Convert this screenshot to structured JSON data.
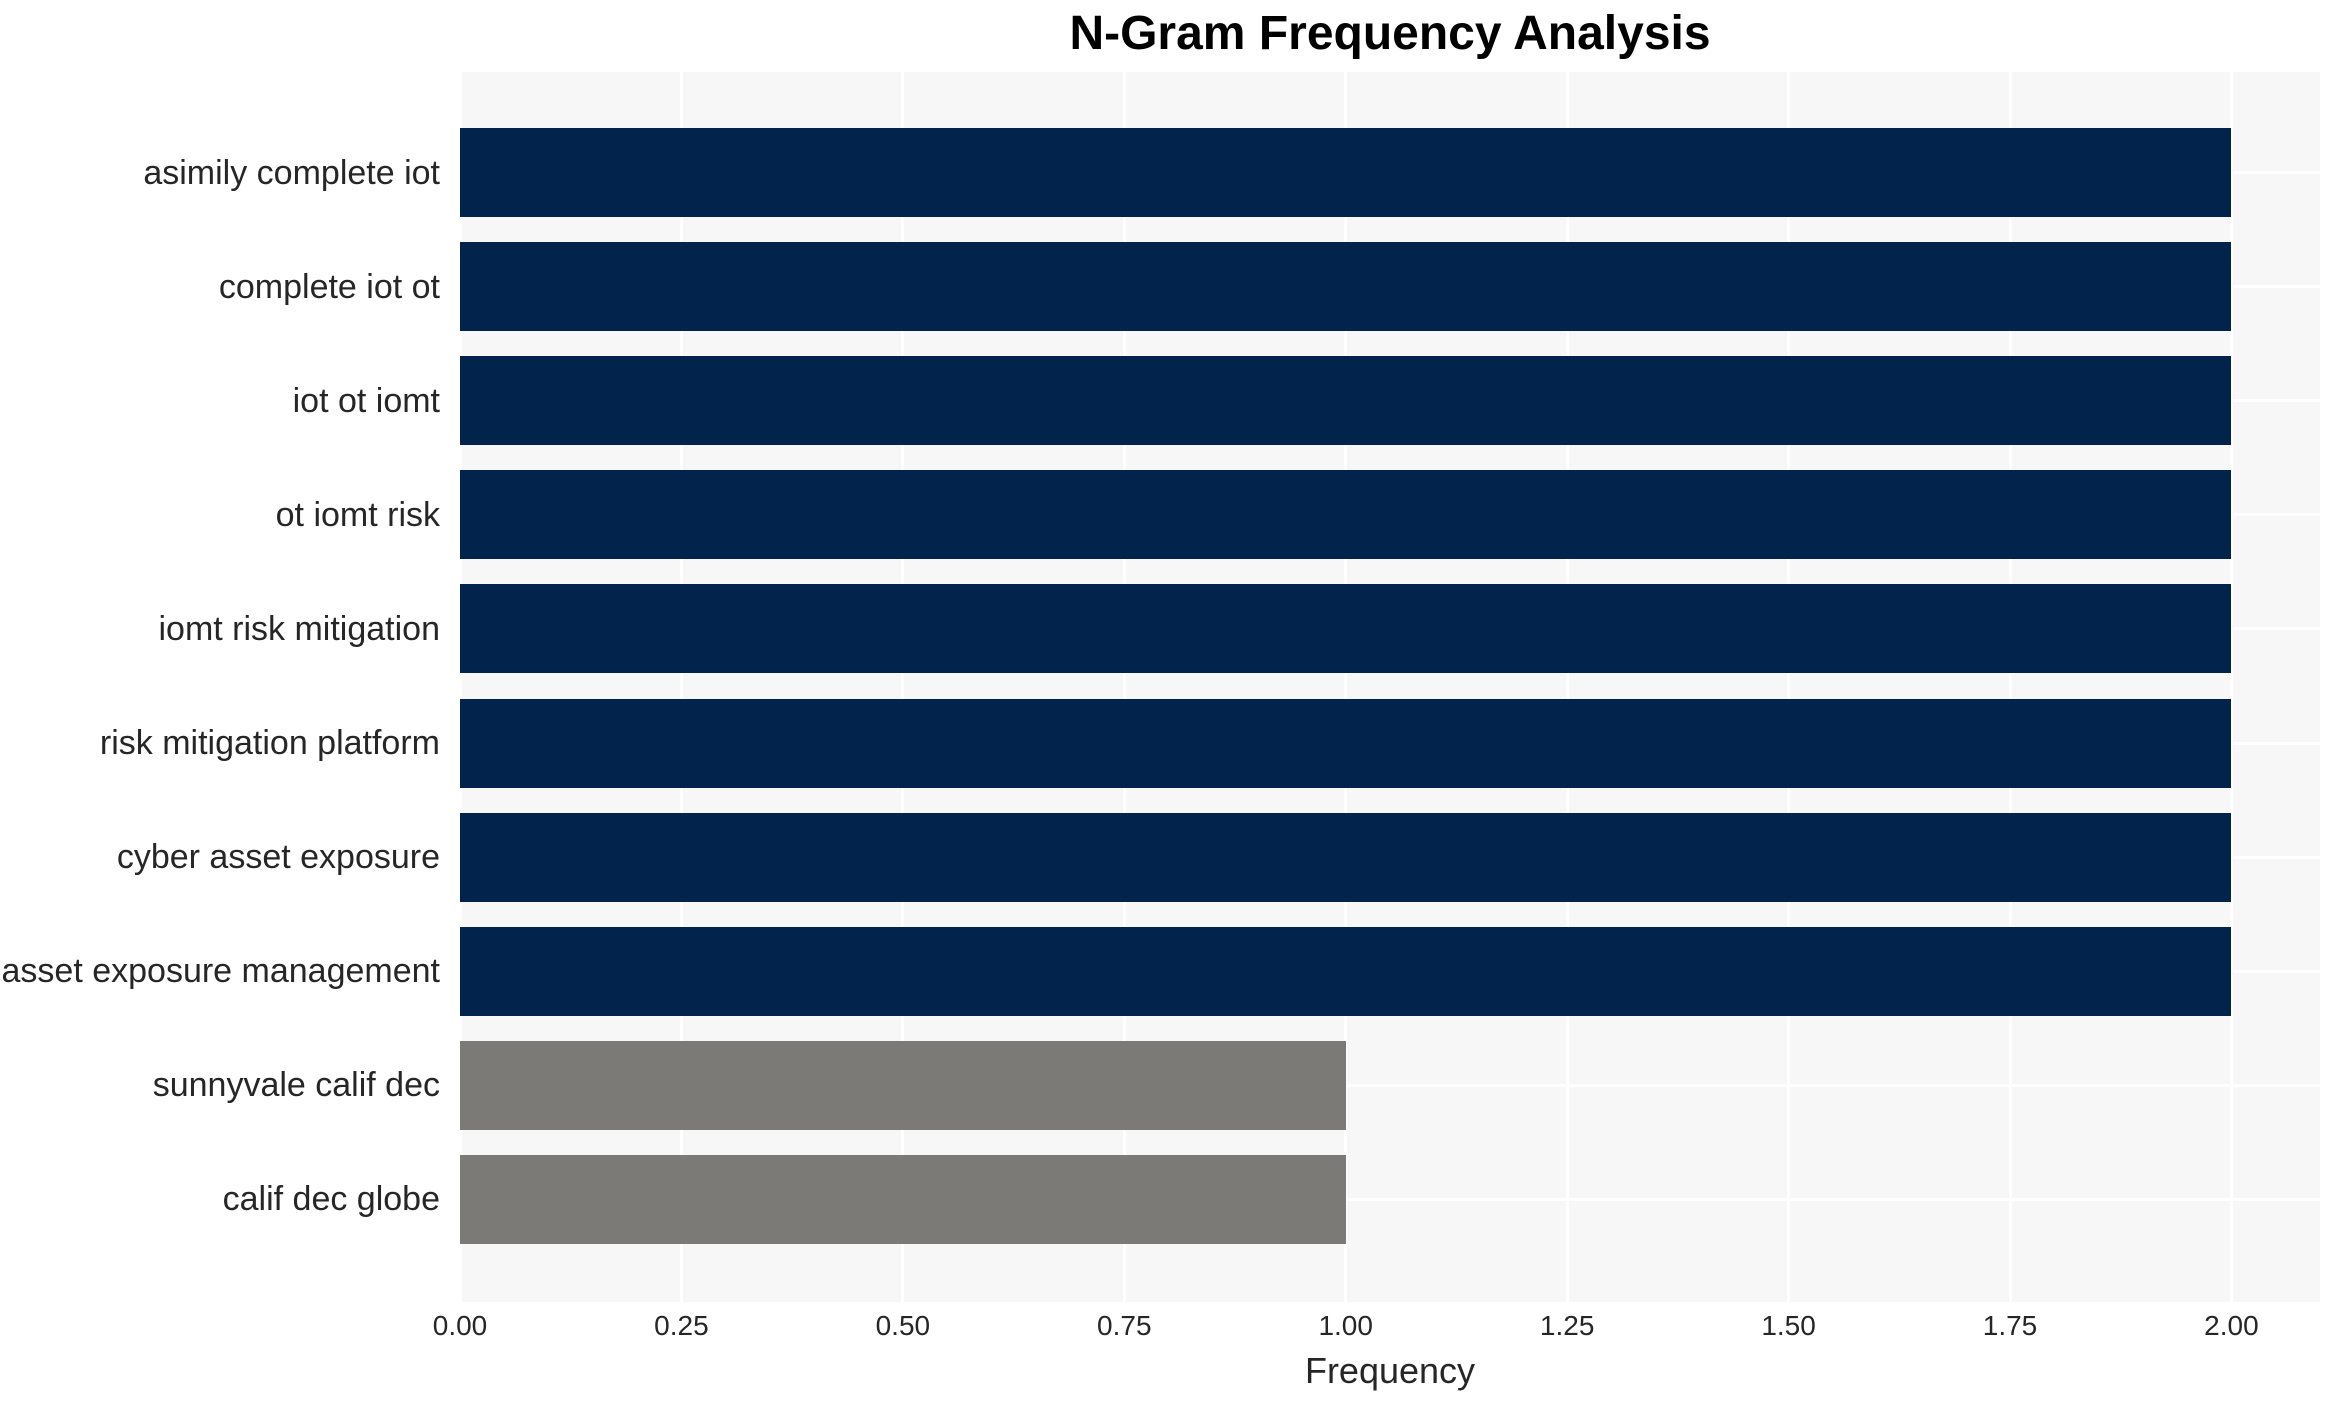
{
  "chart_data": {
    "type": "bar",
    "orientation": "horizontal",
    "title": "N-Gram Frequency Analysis",
    "xlabel": "Frequency",
    "ylabel": "",
    "categories": [
      "asimily complete iot",
      "complete iot ot",
      "iot ot iomt",
      "ot iomt risk",
      "iomt risk mitigation",
      "risk mitigation platform",
      "cyber asset exposure",
      "asset exposure management",
      "sunnyvale calif dec",
      "calif dec globe"
    ],
    "values": [
      2,
      2,
      2,
      2,
      2,
      2,
      2,
      2,
      1,
      1
    ],
    "xlim": [
      0,
      2.1
    ],
    "xticks": [
      0,
      0.25,
      0.5,
      0.75,
      1.0,
      1.25,
      1.5,
      1.75,
      2.0
    ],
    "xtick_labels": [
      "0.00",
      "0.25",
      "0.50",
      "0.75",
      "1.00",
      "1.25",
      "1.50",
      "1.75",
      "2.00"
    ],
    "bar_colors": [
      "#02244c",
      "#02244c",
      "#02244c",
      "#02244c",
      "#02244c",
      "#02244c",
      "#02244c",
      "#02244c",
      "#7b7a76",
      "#7b7a76"
    ],
    "grid": true,
    "legend": false
  },
  "style": {
    "plot_background": "#f7f7f7",
    "grid_color": "#ffffff",
    "highlight_bar_color": "#02244c",
    "muted_bar_color": "#7b7a76",
    "text_color": "#262626",
    "title_color": "#000000"
  }
}
